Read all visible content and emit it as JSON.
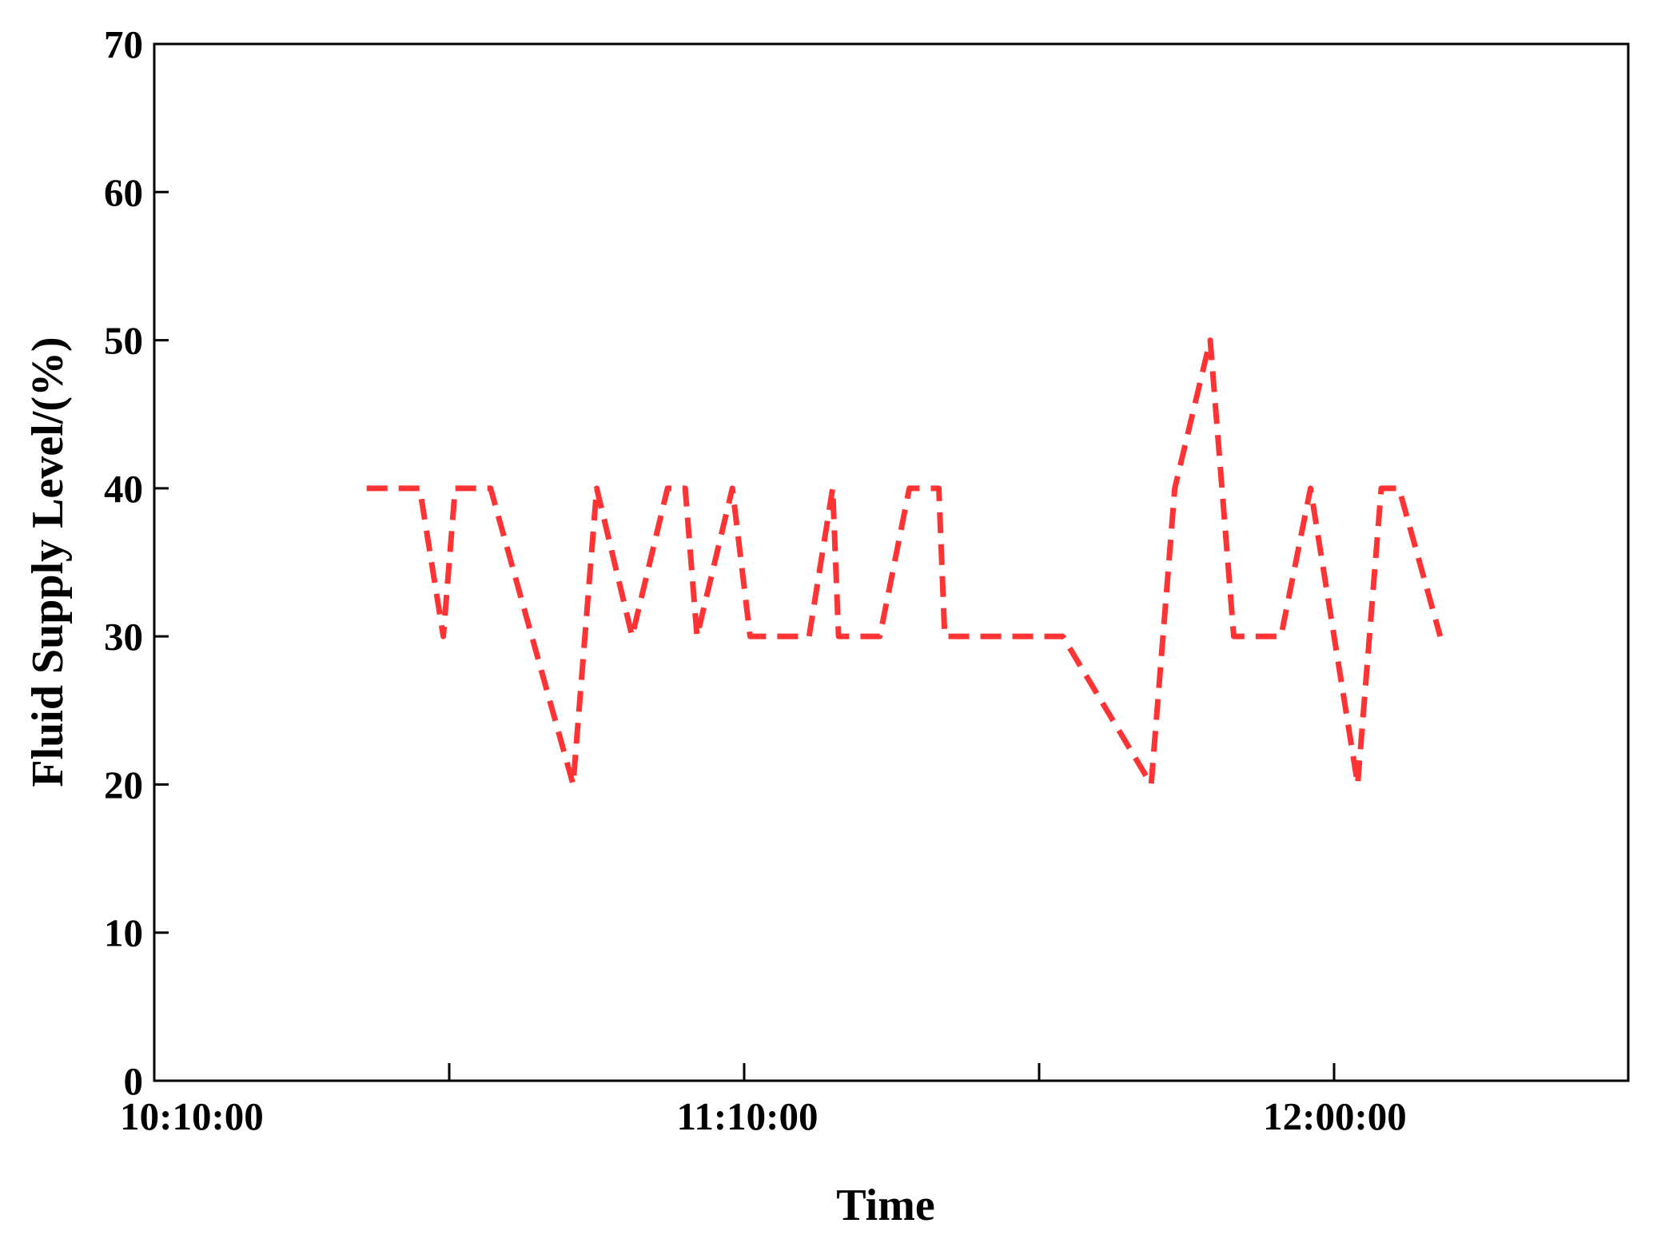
{
  "chart_data": {
    "type": "line",
    "title": "",
    "xlabel": "Time",
    "ylabel": "Fluid Supply Level/(%)",
    "ylim": [
      0,
      70
    ],
    "y_ticks": [
      0,
      10,
      20,
      30,
      40,
      50,
      60,
      70
    ],
    "x_tick_labels": [
      "10:10:00",
      "11:10:00",
      "12:00:00"
    ],
    "grid": false,
    "legend": "none",
    "colors": {
      "line": "#ff3333",
      "axis": "#000000",
      "background": "#ffffff"
    },
    "series": [
      {
        "style": "dashed",
        "points": [
          [
            0.36,
            40
          ],
          [
            0.45,
            40
          ],
          [
            0.49,
            30
          ],
          [
            0.51,
            40
          ],
          [
            0.57,
            40
          ],
          [
            0.71,
            20
          ],
          [
            0.75,
            40
          ],
          [
            0.81,
            30
          ],
          [
            0.87,
            40
          ],
          [
            0.9,
            40
          ],
          [
            0.92,
            30
          ],
          [
            0.98,
            40
          ],
          [
            1.01,
            30
          ],
          [
            1.11,
            30
          ],
          [
            1.15,
            40
          ],
          [
            1.16,
            30
          ],
          [
            1.23,
            30
          ],
          [
            1.28,
            40
          ],
          [
            1.33,
            40
          ],
          [
            1.34,
            30
          ],
          [
            1.54,
            30
          ],
          [
            1.69,
            20
          ],
          [
            1.73,
            40
          ],
          [
            1.79,
            50
          ],
          [
            1.83,
            30
          ],
          [
            1.91,
            30
          ],
          [
            1.96,
            40
          ],
          [
            2.04,
            20
          ],
          [
            2.08,
            40
          ],
          [
            2.11,
            40
          ],
          [
            2.18,
            30
          ]
        ]
      }
    ]
  }
}
